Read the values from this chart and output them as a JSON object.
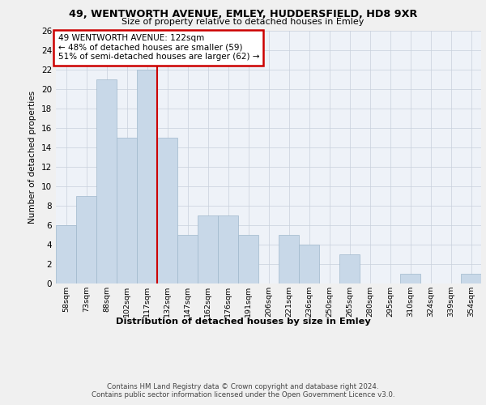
{
  "title1": "49, WENTWORTH AVENUE, EMLEY, HUDDERSFIELD, HD8 9XR",
  "title2": "Size of property relative to detached houses in Emley",
  "xlabel": "Distribution of detached houses by size in Emley",
  "ylabel": "Number of detached properties",
  "categories": [
    "58sqm",
    "73sqm",
    "88sqm",
    "102sqm",
    "117sqm",
    "132sqm",
    "147sqm",
    "162sqm",
    "176sqm",
    "191sqm",
    "206sqm",
    "221sqm",
    "236sqm",
    "250sqm",
    "265sqm",
    "280sqm",
    "295sqm",
    "310sqm",
    "324sqm",
    "339sqm",
    "354sqm"
  ],
  "values": [
    6,
    9,
    21,
    15,
    22,
    15,
    5,
    7,
    7,
    5,
    0,
    5,
    4,
    0,
    3,
    0,
    0,
    1,
    0,
    0,
    1
  ],
  "bar_color": "#c8d8e8",
  "bar_edge_color": "#a0b8cc",
  "grid_color": "#c8d0dc",
  "background_color": "#eef2f8",
  "vline_x": 4.5,
  "vline_color": "#cc0000",
  "annotation_text": "49 WENTWORTH AVENUE: 122sqm\n← 48% of detached houses are smaller (59)\n51% of semi-detached houses are larger (62) →",
  "annotation_box_color": "#cc0000",
  "ylim": [
    0,
    26
  ],
  "yticks": [
    0,
    2,
    4,
    6,
    8,
    10,
    12,
    14,
    16,
    18,
    20,
    22,
    24,
    26
  ],
  "footer": "Contains HM Land Registry data © Crown copyright and database right 2024.\nContains public sector information licensed under the Open Government Licence v3.0.",
  "fig_bg": "#f0f0f0"
}
